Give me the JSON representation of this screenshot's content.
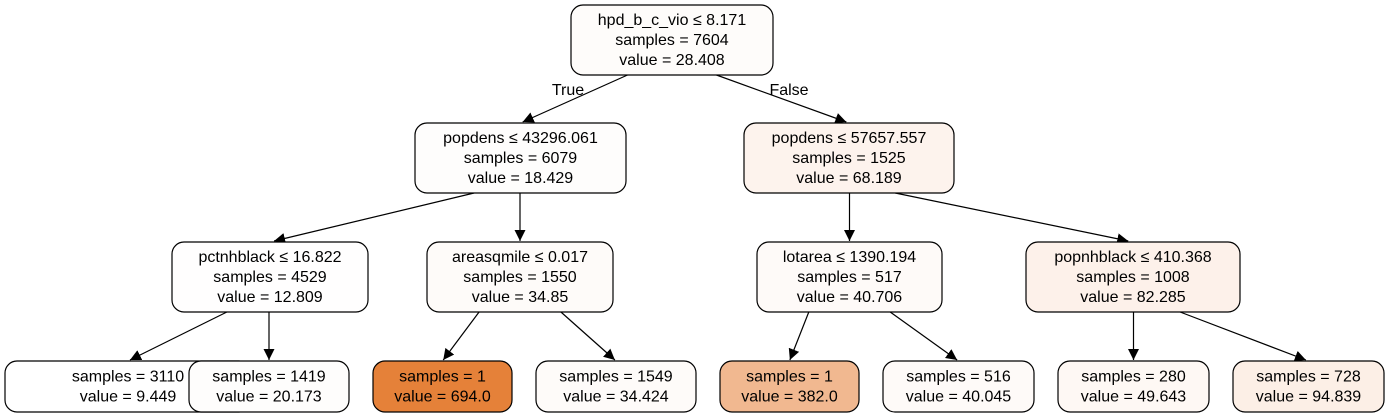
{
  "tree": {
    "nodes": [
      {
        "id": "n0",
        "lines": [
          "hpd_b_c_vio ≤ 8.171",
          "samples = 7604",
          "value = 28.408"
        ],
        "fill": "#fefcfa"
      },
      {
        "id": "n1",
        "lines": [
          "popdens ≤ 43296.061",
          "samples = 6079",
          "value = 18.429"
        ],
        "fill": "#fefdfc"
      },
      {
        "id": "n2",
        "lines": [
          "popdens ≤ 57657.557",
          "samples = 1525",
          "value = 68.189"
        ],
        "fill": "#fdf3ed"
      },
      {
        "id": "n3",
        "lines": [
          "pctnhblack ≤ 16.822",
          "samples = 4529",
          "value = 12.809"
        ],
        "fill": "#fffefe"
      },
      {
        "id": "n4",
        "lines": [
          "areasqmile ≤ 0.017",
          "samples = 1550",
          "value = 34.85"
        ],
        "fill": "#fefbf9"
      },
      {
        "id": "n5",
        "lines": [
          "lotarea ≤ 1390.194",
          "samples = 517",
          "value = 40.706"
        ],
        "fill": "#fefaf8"
      },
      {
        "id": "n6",
        "lines": [
          "popnhblack ≤ 410.368",
          "samples = 1008",
          "value = 82.285"
        ],
        "fill": "#fdf1ea"
      },
      {
        "id": "n7",
        "lines": [
          "samples = 3110",
          "value = 9.449"
        ],
        "fill": "#ffffff"
      },
      {
        "id": "n8",
        "lines": [
          "samples = 1419",
          "value = 20.173"
        ],
        "fill": "#fefdfc"
      },
      {
        "id": "n9",
        "lines": [
          "samples = 1",
          "value = 694.0"
        ],
        "fill": "#e58139"
      },
      {
        "id": "n10",
        "lines": [
          "samples = 1549",
          "value = 34.424"
        ],
        "fill": "#fefbf9"
      },
      {
        "id": "n11",
        "lines": [
          "samples = 1",
          "value = 382.0"
        ],
        "fill": "#f1b890"
      },
      {
        "id": "n12",
        "lines": [
          "samples = 516",
          "value = 40.045"
        ],
        "fill": "#fefaf8"
      },
      {
        "id": "n13",
        "lines": [
          "samples = 280",
          "value = 49.643"
        ],
        "fill": "#fef8f4"
      },
      {
        "id": "n14",
        "lines": [
          "samples = 728",
          "value = 94.839"
        ],
        "fill": "#fcefe6"
      }
    ],
    "edges": [
      {
        "from": "n0",
        "to": "n1",
        "label": "True"
      },
      {
        "from": "n0",
        "to": "n2",
        "label": "False"
      },
      {
        "from": "n1",
        "to": "n3",
        "label": ""
      },
      {
        "from": "n1",
        "to": "n4",
        "label": ""
      },
      {
        "from": "n2",
        "to": "n5",
        "label": ""
      },
      {
        "from": "n2",
        "to": "n6",
        "label": ""
      },
      {
        "from": "n3",
        "to": "n7",
        "label": ""
      },
      {
        "from": "n3",
        "to": "n8",
        "label": ""
      },
      {
        "from": "n4",
        "to": "n9",
        "label": ""
      },
      {
        "from": "n4",
        "to": "n10",
        "label": ""
      },
      {
        "from": "n5",
        "to": "n11",
        "label": ""
      },
      {
        "from": "n5",
        "to": "n12",
        "label": ""
      },
      {
        "from": "n6",
        "to": "n13",
        "label": ""
      },
      {
        "from": "n6",
        "to": "n14",
        "label": ""
      }
    ]
  }
}
